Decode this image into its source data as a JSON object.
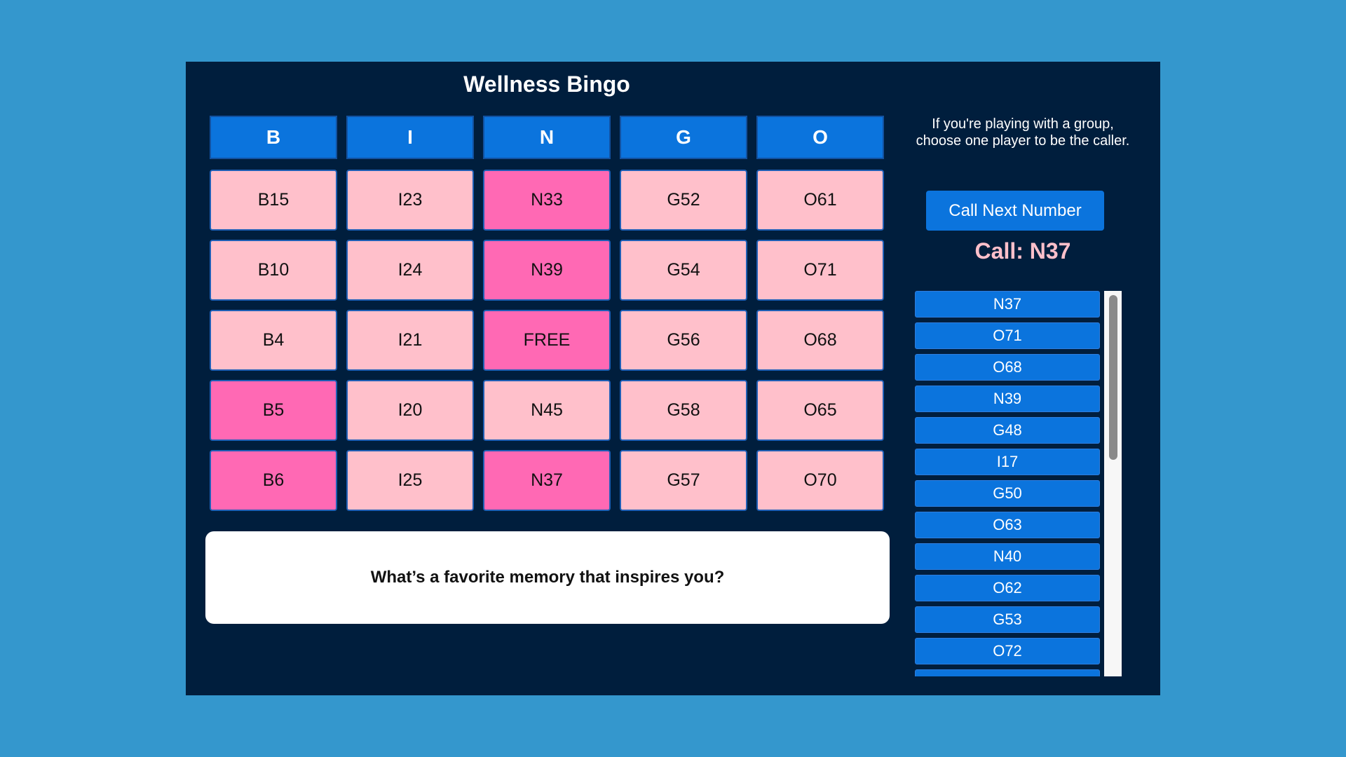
{
  "title": "Wellness Bingo",
  "headers": [
    "B",
    "I",
    "N",
    "G",
    "O"
  ],
  "board": [
    [
      {
        "label": "B15",
        "marked": false
      },
      {
        "label": "I23",
        "marked": false
      },
      {
        "label": "N33",
        "marked": true
      },
      {
        "label": "G52",
        "marked": false
      },
      {
        "label": "O61",
        "marked": false
      }
    ],
    [
      {
        "label": "B10",
        "marked": false
      },
      {
        "label": "I24",
        "marked": false
      },
      {
        "label": "N39",
        "marked": true
      },
      {
        "label": "G54",
        "marked": false
      },
      {
        "label": "O71",
        "marked": false
      }
    ],
    [
      {
        "label": "B4",
        "marked": false
      },
      {
        "label": "I21",
        "marked": false
      },
      {
        "label": "FREE",
        "marked": true
      },
      {
        "label": "G56",
        "marked": false
      },
      {
        "label": "O68",
        "marked": false
      }
    ],
    [
      {
        "label": "B5",
        "marked": true
      },
      {
        "label": "I20",
        "marked": false
      },
      {
        "label": "N45",
        "marked": false
      },
      {
        "label": "G58",
        "marked": false
      },
      {
        "label": "O65",
        "marked": false
      }
    ],
    [
      {
        "label": "B6",
        "marked": true
      },
      {
        "label": "I25",
        "marked": false
      },
      {
        "label": "N37",
        "marked": true
      },
      {
        "label": "G57",
        "marked": false
      },
      {
        "label": "O70",
        "marked": false
      }
    ]
  ],
  "prompt": "What’s a favorite memory that inspires you?",
  "instructions": "If you're playing with a group, choose one player to be the caller.",
  "call_button_label": "Call Next Number",
  "current_call": "Call: N37",
  "called_numbers": [
    "N37",
    "O71",
    "O68",
    "N39",
    "G48",
    "I17",
    "G50",
    "O63",
    "N40",
    "O62",
    "G53",
    "O72"
  ],
  "colors": {
    "page_background": "#3497cd",
    "panel_background": "#001e3d",
    "header_blue": "#0b74dd",
    "cell_pink": "#ffc0cb",
    "cell_marked": "#ff69b4",
    "call_text": "#ffc0cb"
  }
}
